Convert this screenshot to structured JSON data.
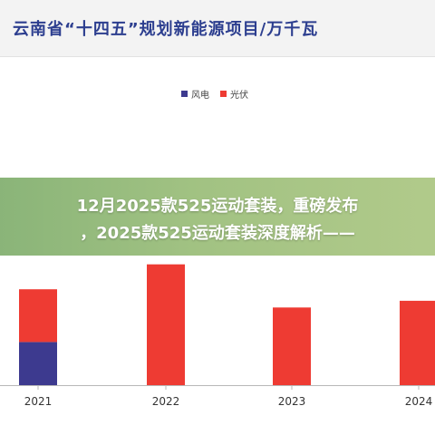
{
  "title": "云南省“十四五”规划新能源项目/万千瓦",
  "banner": {
    "line1": "12月2025款525运动套装，重磅发布",
    "line2": "，2025款525运动套装深度解析——"
  },
  "colors": {
    "wind": "#3d3a8f",
    "solar": "#ee3b33",
    "title": "#2c3e8f",
    "banner": "#86b26a"
  },
  "chart_data": {
    "type": "bar",
    "stacked": true,
    "categories": [
      "2021",
      "2022",
      "2023",
      "2024"
    ],
    "series": [
      {
        "name": "风电",
        "values": [
          45,
          0,
          0,
          0
        ]
      },
      {
        "name": "光伏",
        "values": [
          55,
          126,
          81,
          88
        ]
      }
    ],
    "legend": "top-center",
    "grid": false
  }
}
